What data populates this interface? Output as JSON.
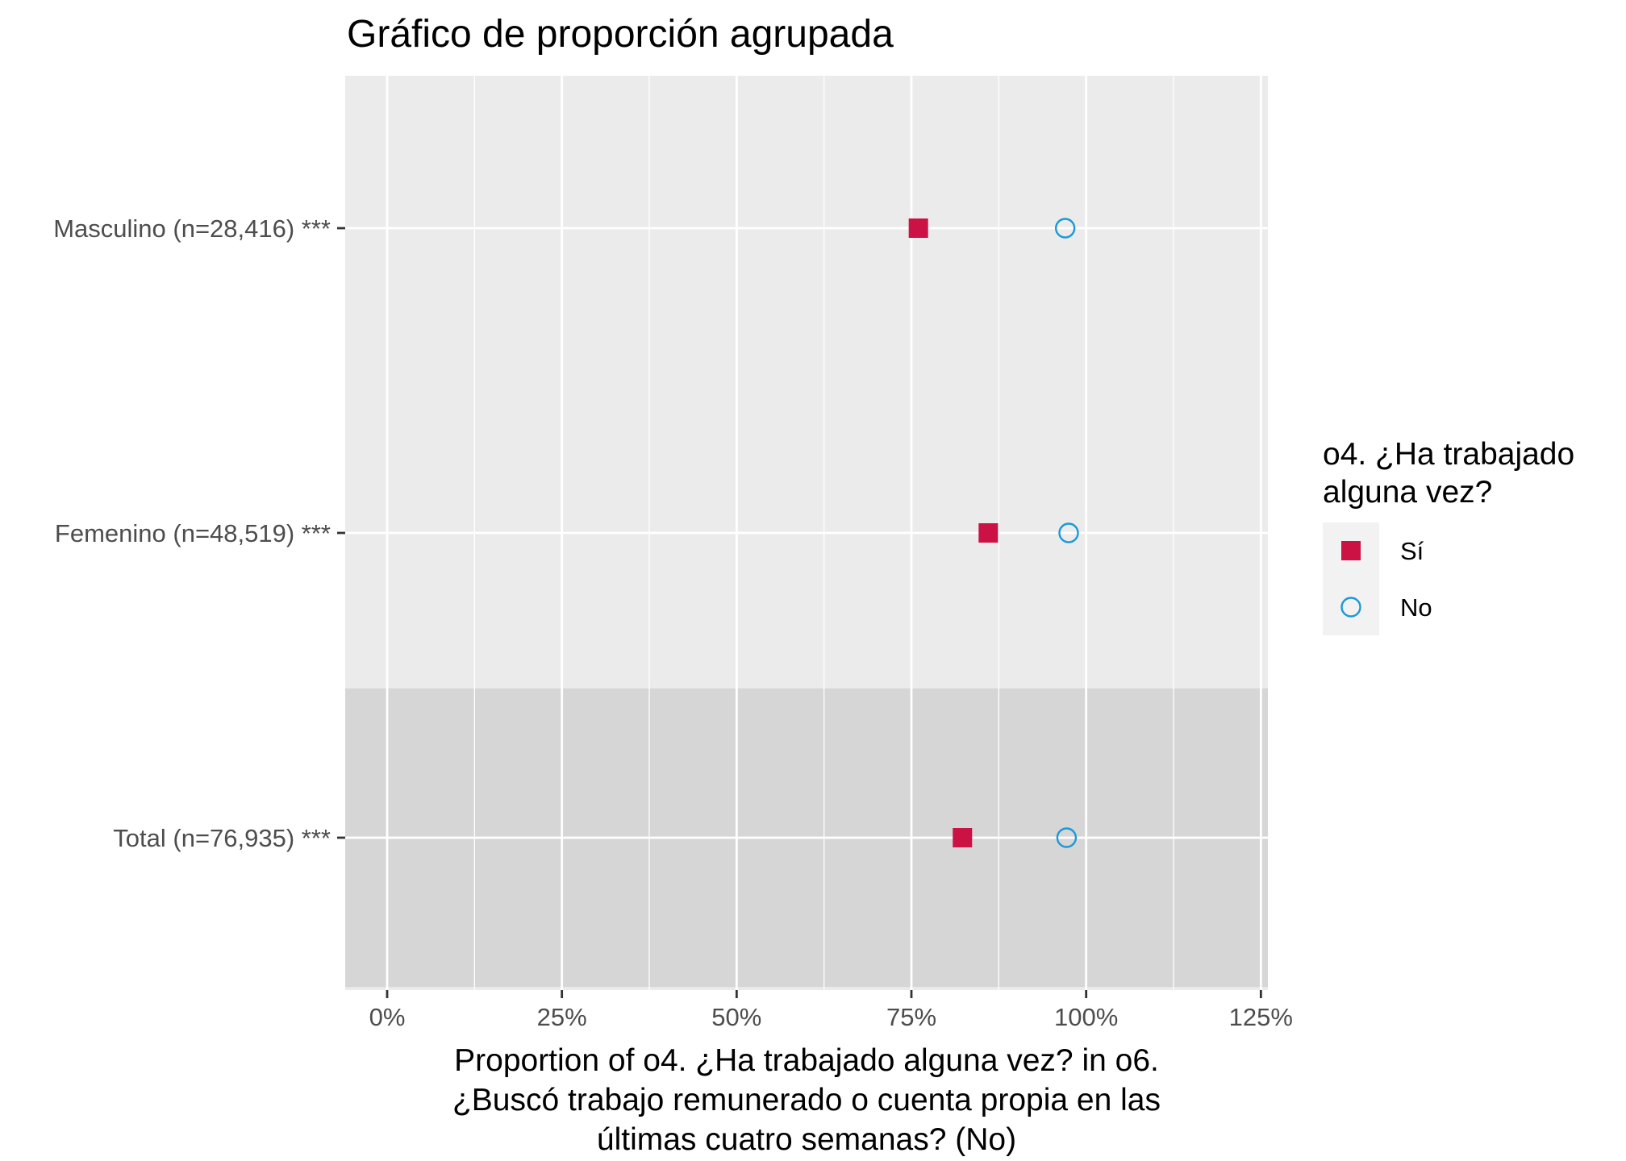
{
  "chart_data": {
    "type": "scatter",
    "title": "Gráfico de proporción agrupada",
    "xlabel_lines": [
      "Proportion of o4. ¿Ha trabajado alguna vez? in o6.",
      "¿Buscó trabajo remunerado o cuenta propia en las",
      "últimas cuatro semanas? (No)"
    ],
    "ylabel": "",
    "categories": [
      "Masculino (n=28,416) ***",
      "Femenino (n=48,519) ***",
      "Total (n=76,935) ***"
    ],
    "x_ticks": [
      0,
      25,
      50,
      75,
      100,
      125
    ],
    "x_tick_labels": [
      "0%",
      "25%",
      "50%",
      "75%",
      "100%",
      "125%"
    ],
    "xlim": [
      -6,
      126
    ],
    "grid": true,
    "highlight_category": "Total (n=76,935) ***",
    "legend": {
      "title_lines": [
        "o4. ¿Ha trabajado",
        "alguna vez?"
      ],
      "position": "right"
    },
    "series": [
      {
        "name": "Sí",
        "marker": "filled-square",
        "color": "#cc1144",
        "values": [
          76,
          86,
          82.3
        ]
      },
      {
        "name": "No",
        "marker": "open-circle",
        "color": "#1b9ad6",
        "values": [
          97,
          97.5,
          97.2
        ]
      }
    ]
  }
}
